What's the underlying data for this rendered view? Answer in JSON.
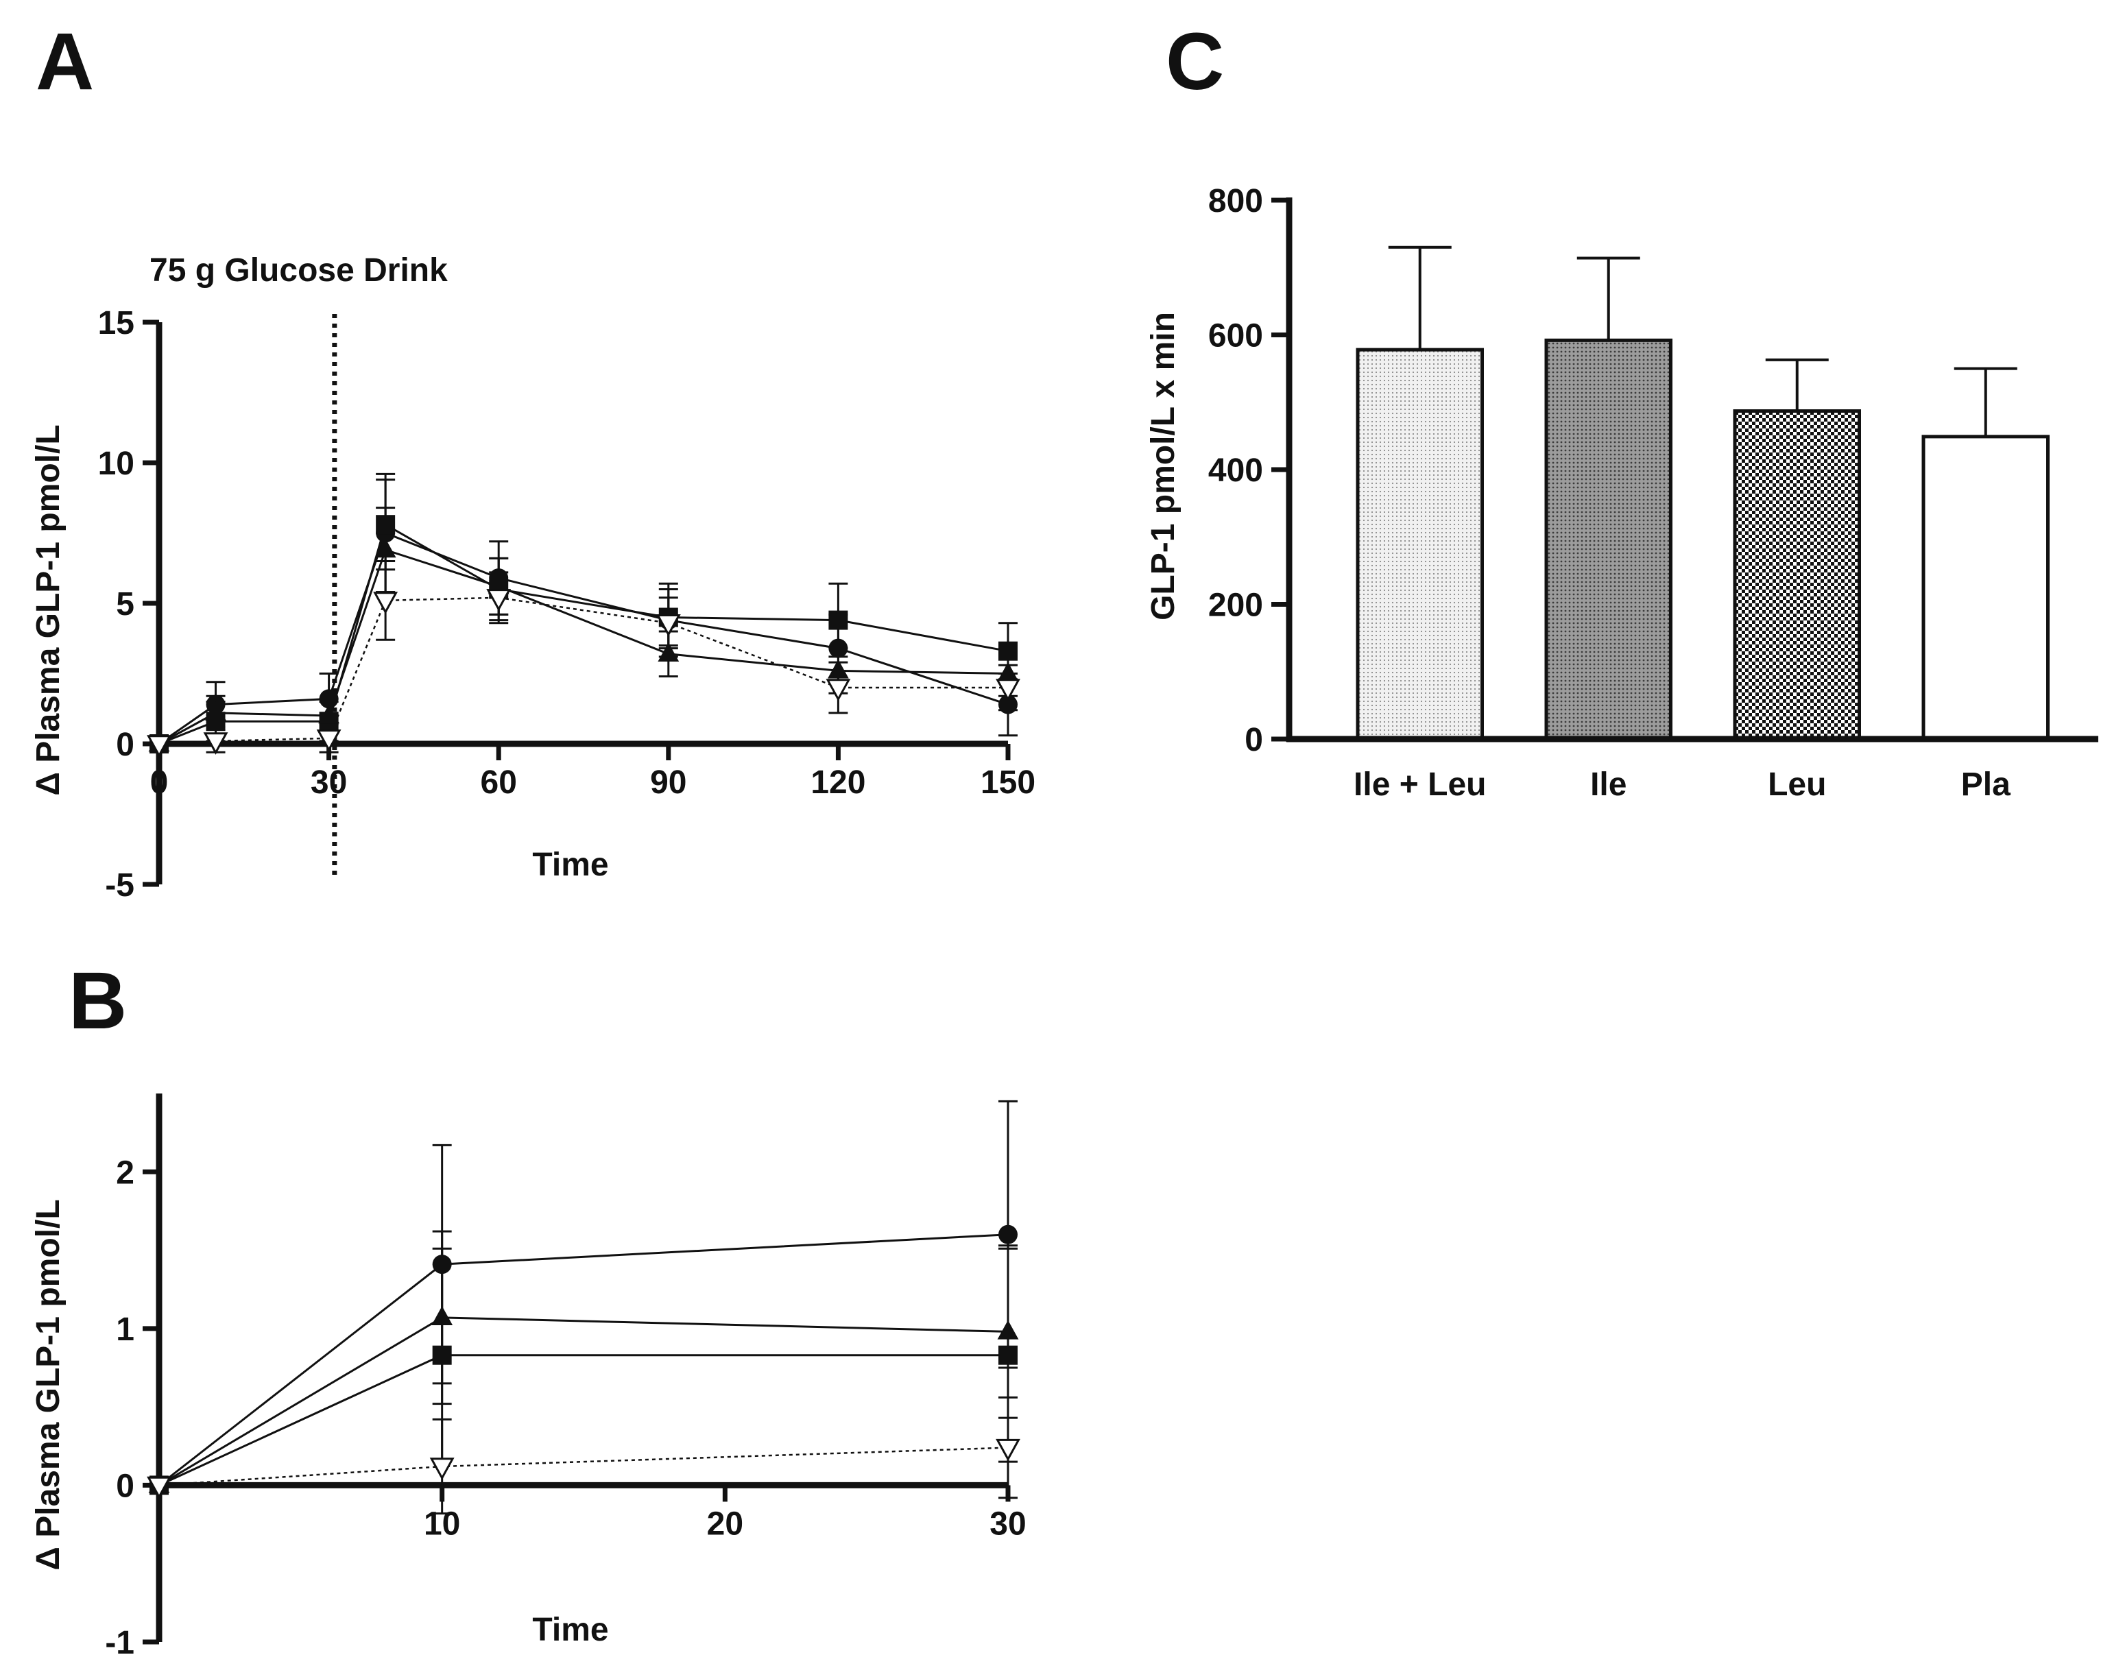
{
  "chart_data": [
    {
      "panel": "A",
      "type": "line",
      "title": "",
      "xlabel": "Time",
      "ylabel": "Δ Plasma GLP-1 pmol/L",
      "xlim": [
        0,
        150
      ],
      "ylim": [
        -5,
        15
      ],
      "xticks": [
        0,
        30,
        60,
        90,
        120,
        150
      ],
      "xtick_labels": [
        "0",
        "30",
        "60",
        "90",
        "120",
        "150"
      ],
      "yticks": [
        -5,
        0,
        5,
        10,
        15
      ],
      "ytick_labels": [
        "-5",
        "0",
        "5",
        "10",
        "15"
      ],
      "annotation": {
        "text": "75 g Glucose Drink",
        "x": 31
      },
      "x": [
        0,
        10,
        30,
        40,
        60,
        90,
        120,
        150
      ],
      "series": [
        {
          "name": "circle",
          "marker": "circle",
          "dashed": false,
          "values": [
            0,
            1.4,
            1.6,
            7.5,
            5.9,
            4.4,
            3.4,
            1.4
          ],
          "errors": [
            0,
            0.8,
            0.9,
            2.1,
            1.3,
            1.3,
            1.2,
            1.1
          ]
        },
        {
          "name": "square",
          "marker": "square",
          "dashed": false,
          "values": [
            0,
            0.8,
            0.8,
            7.8,
            5.5,
            4.5,
            4.4,
            3.3
          ],
          "errors": [
            0,
            0.7,
            0.7,
            1.6,
            1.1,
            1.0,
            1.3,
            1.0
          ]
        },
        {
          "name": "triangle",
          "marker": "triangle",
          "dashed": false,
          "values": [
            0,
            1.1,
            1.0,
            6.9,
            5.6,
            3.2,
            2.6,
            2.5
          ],
          "errors": [
            0,
            0.6,
            0.6,
            1.5,
            1.0,
            0.8,
            0.8,
            0.8
          ]
        },
        {
          "name": "open-triangle",
          "marker": "open-triangle",
          "dashed": true,
          "values": [
            0,
            0.1,
            0.2,
            5.1,
            5.2,
            4.3,
            2.0,
            2.0
          ],
          "errors": [
            0,
            0.4,
            0.5,
            1.4,
            0.9,
            0.9,
            0.9,
            0.8
          ]
        }
      ]
    },
    {
      "panel": "B",
      "type": "line",
      "title": "",
      "xlabel": "Time",
      "ylabel": "Δ Plasma GLP-1 pmol/L",
      "xlim": [
        0,
        30
      ],
      "ylim": [
        -1,
        2.5
      ],
      "xticks": [
        10,
        20,
        30
      ],
      "xtick_labels": [
        "10",
        "20",
        "30"
      ],
      "yticks": [
        -1,
        0,
        1,
        2
      ],
      "ytick_labels": [
        "-1",
        "0",
        "1",
        "2"
      ],
      "x": [
        0,
        10,
        30
      ],
      "series": [
        {
          "name": "circle",
          "marker": "circle",
          "dashed": false,
          "values": [
            0,
            1.41,
            1.6
          ],
          "errors": [
            0,
            0.76,
            0.85
          ]
        },
        {
          "name": "triangle",
          "marker": "triangle",
          "dashed": false,
          "values": [
            0,
            1.07,
            0.98
          ],
          "errors": [
            0,
            0.55,
            0.55
          ]
        },
        {
          "name": "square",
          "marker": "square",
          "dashed": false,
          "values": [
            0,
            0.83,
            0.83
          ],
          "errors": [
            0,
            0.68,
            0.68
          ]
        },
        {
          "name": "open-triangle",
          "marker": "open-triangle",
          "dashed": true,
          "values": [
            0,
            0.12,
            0.24
          ],
          "errors": [
            0,
            0.3,
            0.32
          ]
        }
      ]
    },
    {
      "panel": "C",
      "type": "bar",
      "title": "",
      "xlabel": "",
      "ylabel": "GLP-1 pmol/L x min",
      "ylim": [
        0,
        800
      ],
      "yticks": [
        0,
        200,
        400,
        600,
        800
      ],
      "ytick_labels": [
        "0",
        "200",
        "400",
        "600",
        "800"
      ],
      "categories": [
        "Ile + Leu",
        "Ile",
        "Leu",
        "Pla"
      ],
      "values": [
        578,
        592,
        487,
        449
      ],
      "errors": [
        152,
        122,
        76,
        101
      ],
      "fills": [
        "fine-dots",
        "dark-dots",
        "checker",
        "open"
      ]
    }
  ]
}
